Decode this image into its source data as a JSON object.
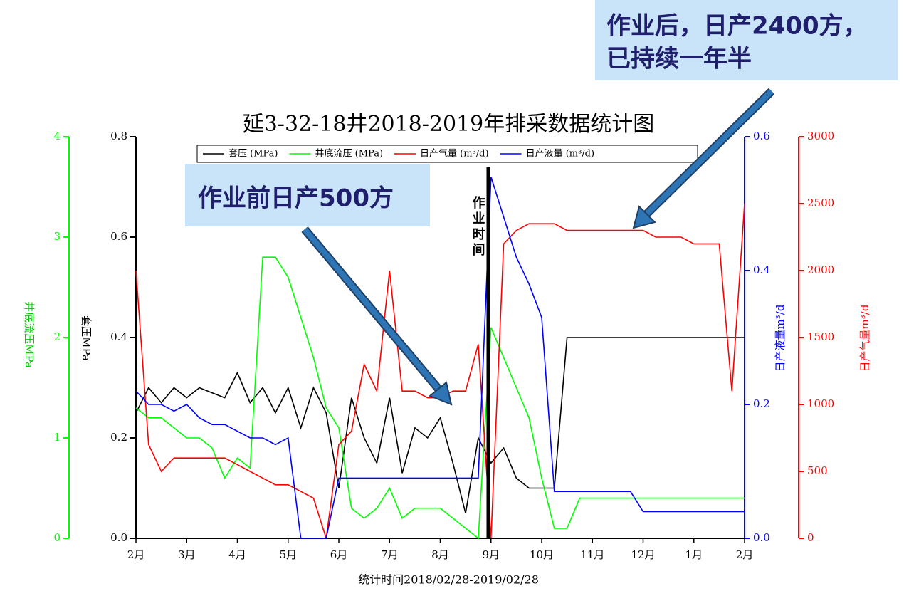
{
  "chart_data": {
    "type": "line",
    "title": "延3-32-18井2018-2019年排采数据统计图",
    "xlabel": "统计时间2018/02/28-2019/02/28",
    "ylabel": "套压MPa",
    "y2label": "井底流压MPa",
    "y3label": "日产液量m³/d",
    "y4label": "日产气量m³/d",
    "categories": [
      "2月",
      null,
      null,
      null,
      "3月",
      null,
      null,
      null,
      "4月",
      null,
      null,
      null,
      "5月",
      null,
      null,
      null,
      "6月",
      null,
      null,
      null,
      "7月",
      null,
      null,
      null,
      "8月",
      null,
      null,
      null,
      "9月",
      null,
      null,
      null,
      "10月",
      null,
      null,
      null,
      "11月",
      null,
      null,
      null,
      "12月",
      null,
      null,
      null,
      "1月",
      null,
      null,
      null,
      "2月"
    ],
    "ylim": [
      0,
      0.8
    ],
    "yticks": [
      {
        "value": 0,
        "label": "0.0"
      },
      0.2,
      0.4,
      0.6,
      0.8
    ],
    "y2lim": [
      0,
      4
    ],
    "y2ticks": [
      0,
      1,
      2,
      3,
      4
    ],
    "y3lim": [
      0,
      0.6
    ],
    "y3ticks": [
      {
        "value": 0,
        "label": "0.0"
      },
      0.2,
      0.4,
      0.6
    ],
    "y4lim": [
      0,
      3000
    ],
    "y4ticks": [
      0,
      500,
      1000,
      1500,
      2000,
      2500,
      3000
    ],
    "series": [
      {
        "name": "套压 (MPa)",
        "color": "#000000",
        "axis": "y",
        "values": [
          0.25,
          0.3,
          0.27,
          0.3,
          0.28,
          0.3,
          0.29,
          0.28,
          0.33,
          0.27,
          0.3,
          0.25,
          0.3,
          0.22,
          0.3,
          0.25,
          0.1,
          0.28,
          0.2,
          0.15,
          0.28,
          0.13,
          0.22,
          0.2,
          0.24,
          0.15,
          0.05,
          0.2,
          0.15,
          0.18,
          0.12,
          0.1,
          0.1,
          0.1,
          0.4,
          0.4,
          0.4,
          0.4,
          0.4,
          0.4,
          0.4,
          0.4,
          0.4,
          0.4,
          0.4,
          0.4,
          0.4,
          0.4,
          0.4
        ]
      },
      {
        "name": "井底流压 (MPa)",
        "color": "#00ff00",
        "axis": "y2",
        "values": [
          1.3,
          1.2,
          1.2,
          1.1,
          1.0,
          1.0,
          0.9,
          0.6,
          0.8,
          0.7,
          2.8,
          2.8,
          2.6,
          2.2,
          1.8,
          1.3,
          1.1,
          0.3,
          0.2,
          0.3,
          0.5,
          0.2,
          0.3,
          0.3,
          0.3,
          0.2,
          0.1,
          0.0,
          2.1,
          1.8,
          1.5,
          1.2,
          0.6,
          0.1,
          0.1,
          0.4,
          0.4,
          0.4,
          0.4,
          0.4,
          0.4,
          0.4,
          0.4,
          0.4,
          0.4,
          0.4,
          0.4,
          0.4,
          0.4
        ]
      },
      {
        "name": "日产气量 (m³/d)",
        "color": "#ff0000",
        "axis": "y4",
        "values": [
          2000,
          700,
          500,
          600,
          600,
          600,
          600,
          600,
          550,
          500,
          450,
          400,
          400,
          350,
          300,
          0,
          700,
          800,
          1300,
          1100,
          2000,
          1100,
          1100,
          1050,
          1050,
          1100,
          1100,
          1450,
          0,
          2200,
          2300,
          2350,
          2350,
          2350,
          2300,
          2300,
          2300,
          2300,
          2300,
          2300,
          2300,
          2250,
          2250,
          2250,
          2200,
          2200,
          2200,
          1100,
          2500
        ]
      },
      {
        "name": "日产液量 (m³/d)",
        "color": "#0000ff",
        "axis": "y3",
        "values": [
          0.22,
          0.2,
          0.2,
          0.19,
          0.2,
          0.18,
          0.17,
          0.17,
          0.16,
          0.15,
          0.15,
          0.14,
          0.15,
          0,
          0,
          0,
          0.09,
          0.09,
          0.09,
          0.09,
          0.09,
          0.09,
          0.09,
          0.09,
          0.09,
          0.09,
          0.09,
          0.09,
          0.54,
          0.48,
          0.42,
          0.38,
          0.33,
          0.07,
          0.07,
          0.07,
          0.07,
          0.07,
          0.07,
          0.07,
          0.04,
          0.04,
          0.04,
          0.04,
          0.04,
          0.04,
          0.04,
          0.04,
          0.04
        ]
      }
    ],
    "annotations": [
      "作业后，日产2400方，",
      "已持续一年半",
      "作业前日产500方",
      "作业时间"
    ]
  }
}
